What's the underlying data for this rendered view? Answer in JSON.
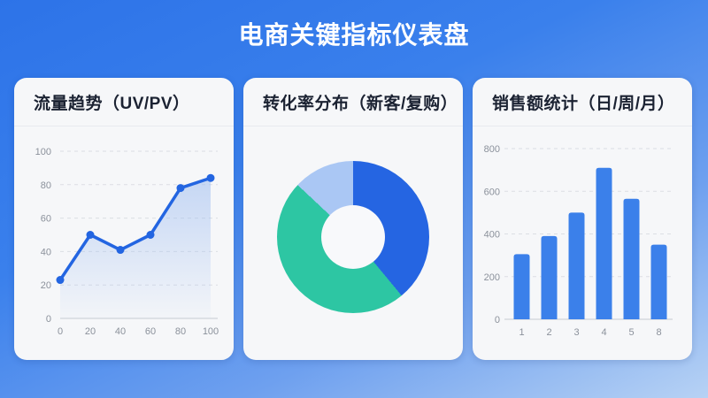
{
  "header": {
    "title": "电商关键指标仪表盘"
  },
  "cards": [
    {
      "title": "流量趋势（UV/PV）"
    },
    {
      "title": "转化率分布（新客/复购）"
    },
    {
      "title": "销售额统计（日/周/月）"
    }
  ],
  "colors": {
    "background_top": "#2d73e8",
    "background_bottom": "#b7d2f4",
    "card_bg": "#f6f7f9",
    "card_title": "#1b2232",
    "axis_text": "#8b919b",
    "gridline": "#dbdee4",
    "axis_line": "#c7cbd1"
  },
  "chart_data": [
    {
      "type": "line",
      "title": "流量趋势（UV/PV）",
      "x": [
        0,
        20,
        40,
        60,
        80,
        100
      ],
      "y": [
        23,
        50,
        41,
        50,
        78,
        84
      ],
      "xlim": [
        0,
        100
      ],
      "ylim": [
        0,
        100
      ],
      "x_ticks": [
        0,
        20,
        40,
        60,
        80,
        100
      ],
      "y_ticks": [
        0,
        20,
        40,
        60,
        80,
        100
      ],
      "grid": "horizontal-dashed",
      "area": true,
      "markers": true,
      "line_color": "#2365e1",
      "fill_color": "#9dbcf0"
    },
    {
      "type": "pie",
      "title": "转化率分布（新客/复购）",
      "donut": true,
      "inner_ratio": 0.42,
      "start_angle_deg": 0,
      "legend": "none",
      "slices": [
        {
          "value": 39,
          "color": "#2565e2"
        },
        {
          "value": 48,
          "color": "#2dc6a3"
        },
        {
          "value": 13,
          "color": "#aac7f4"
        }
      ]
    },
    {
      "type": "bar",
      "title": "销售额统计（日/周/月）",
      "categories": [
        "1",
        "2",
        "3",
        "4",
        "5",
        "8"
      ],
      "values": [
        305,
        390,
        500,
        710,
        565,
        350
      ],
      "ylim": [
        0,
        800
      ],
      "y_ticks": [
        0,
        200,
        400,
        600,
        800
      ],
      "grid": "horizontal-dashed",
      "bar_color": "#3b80ea"
    }
  ]
}
